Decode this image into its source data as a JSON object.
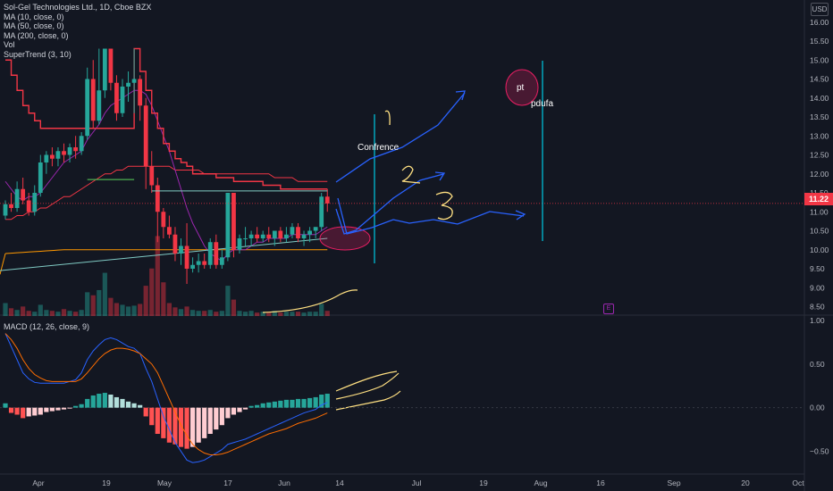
{
  "legend": {
    "title": "Sol-Gel Technologies Ltd., 1D, Cboe BZX",
    "ma10": "MA (10, close, 0)",
    "ma50": "MA (50, close, 0)",
    "ma200": "MA (200, close, 0)",
    "vol": "Vol",
    "supertrend": "SuperTrend (3, 10)"
  },
  "macd_label": "MACD (12, 26, close, 9)",
  "currency": "USD",
  "last_price": "11.22",
  "earnings_badge": "E",
  "colors": {
    "up": "#26a69a",
    "down": "#f23645",
    "ma10": "#9c27b0",
    "ma50": "#f23645",
    "ma200": "#ff9800",
    "supertrend_red": "#f23645",
    "supertrend_green": "#4caf50",
    "annotation": "#2962ff",
    "macd": "#2962ff",
    "signal": "#ff6d00",
    "background": "#131722"
  },
  "chart_data": {
    "type": "candlestick",
    "price_axis": [
      "16.00",
      "15.50",
      "15.00",
      "14.50",
      "14.00",
      "13.50",
      "13.00",
      "12.50",
      "12.00",
      "11.50",
      "11.00",
      "10.50",
      "10.00",
      "9.50",
      "9.00",
      "8.50"
    ],
    "price_ylim": [
      8.3,
      16.3
    ],
    "macd_axis": [
      "1.00",
      "0.50",
      "0.00",
      "−0.50"
    ],
    "macd_ylim": [
      -0.75,
      1.05
    ],
    "x_labels": [
      "Apr",
      "19",
      "May",
      "17",
      "Jun",
      "14",
      "Jul",
      "19",
      "Aug",
      "16",
      "Sep",
      "20",
      "Oct"
    ],
    "candles": [
      [
        10.9,
        11.3,
        10.8,
        11.2
      ],
      [
        11.2,
        11.5,
        11.0,
        11.1
      ],
      [
        11.1,
        11.8,
        11.0,
        11.6
      ],
      [
        11.6,
        11.9,
        11.2,
        11.3
      ],
      [
        11.3,
        11.5,
        10.9,
        11.0
      ],
      [
        11.0,
        11.7,
        10.9,
        11.5
      ],
      [
        11.5,
        12.5,
        11.4,
        12.3
      ],
      [
        12.3,
        12.6,
        12.0,
        12.5
      ],
      [
        12.5,
        12.7,
        12.2,
        12.4
      ],
      [
        12.4,
        12.7,
        12.2,
        12.6
      ],
      [
        12.6,
        12.8,
        12.3,
        12.5
      ],
      [
        12.5,
        12.8,
        12.3,
        12.7
      ],
      [
        12.7,
        13.0,
        12.4,
        12.6
      ],
      [
        12.6,
        13.1,
        12.5,
        13.0
      ],
      [
        13.0,
        14.8,
        12.9,
        14.5
      ],
      [
        14.5,
        15.0,
        13.2,
        13.4
      ],
      [
        13.4,
        15.3,
        13.3,
        14.2
      ],
      [
        14.2,
        15.3,
        14.0,
        15.3
      ],
      [
        15.3,
        15.3,
        14.2,
        14.4
      ],
      [
        14.4,
        14.6,
        13.4,
        13.6
      ],
      [
        13.6,
        14.5,
        13.5,
        14.3
      ],
      [
        14.3,
        14.7,
        13.9,
        14.4
      ],
      [
        14.4,
        15.3,
        13.6,
        14.5
      ],
      [
        14.5,
        14.6,
        13.4,
        13.8
      ],
      [
        13.8,
        14.0,
        11.6,
        12.2
      ],
      [
        12.2,
        12.6,
        11.5,
        11.7
      ],
      [
        11.7,
        11.9,
        10.2,
        11.0
      ],
      [
        11.0,
        11.1,
        10.3,
        10.6
      ],
      [
        10.6,
        10.9,
        10.3,
        10.4
      ],
      [
        10.4,
        10.6,
        9.7,
        9.9
      ],
      [
        9.9,
        10.3,
        9.6,
        10.1
      ],
      [
        10.1,
        10.7,
        9.1,
        9.5
      ],
      [
        9.5,
        9.8,
        9.4,
        9.6
      ],
      [
        9.6,
        9.9,
        9.4,
        9.7
      ],
      [
        9.7,
        9.9,
        9.5,
        9.6
      ],
      [
        9.6,
        10.3,
        9.5,
        10.2
      ],
      [
        10.2,
        10.4,
        9.5,
        9.6
      ],
      [
        9.6,
        10.0,
        9.5,
        9.8
      ],
      [
        9.8,
        11.5,
        9.7,
        11.5
      ],
      [
        11.5,
        11.5,
        9.8,
        10.0
      ],
      [
        10.0,
        10.4,
        9.9,
        10.3
      ],
      [
        10.3,
        10.6,
        10.1,
        10.3
      ],
      [
        10.3,
        10.5,
        10.1,
        10.4
      ],
      [
        10.4,
        10.6,
        10.2,
        10.3
      ],
      [
        10.3,
        10.5,
        10.2,
        10.4
      ],
      [
        10.4,
        10.6,
        10.2,
        10.3
      ],
      [
        10.3,
        10.5,
        10.1,
        10.5
      ],
      [
        10.5,
        10.6,
        10.2,
        10.3
      ],
      [
        10.3,
        10.6,
        10.2,
        10.4
      ],
      [
        10.4,
        10.7,
        10.3,
        10.6
      ],
      [
        10.6,
        10.7,
        10.2,
        10.3
      ],
      [
        10.3,
        10.5,
        10.1,
        10.4
      ],
      [
        10.4,
        10.6,
        10.2,
        10.5
      ],
      [
        10.5,
        10.6,
        10.3,
        10.6
      ],
      [
        10.6,
        11.5,
        10.5,
        11.4
      ],
      [
        11.4,
        11.6,
        11.0,
        11.22
      ]
    ],
    "volume": [
      30,
      18,
      14,
      22,
      12,
      10,
      26,
      14,
      12,
      10,
      16,
      12,
      10,
      14,
      55,
      48,
      60,
      100,
      42,
      30,
      26,
      22,
      24,
      28,
      70,
      110,
      185,
      78,
      30,
      20,
      16,
      22,
      14,
      12,
      12,
      14,
      10,
      12,
      70,
      38,
      12,
      10,
      12,
      8,
      10,
      8,
      12,
      8,
      10,
      10,
      10,
      8,
      10,
      10,
      28,
      12
    ],
    "ma10": [
      11.8,
      11.6,
      11.4,
      11.3,
      11.4,
      11.4,
      11.5,
      11.7,
      11.9,
      12.1,
      12.3,
      12.4,
      12.5,
      12.6,
      12.9,
      13.1,
      13.3,
      13.6,
      13.8,
      13.9,
      14.0,
      14.1,
      14.2,
      14.2,
      14.1,
      13.8,
      13.4,
      13.0,
      12.6,
      12.1,
      11.6,
      11.1,
      10.7,
      10.4,
      10.1,
      9.9,
      9.8,
      9.7,
      9.9,
      10.0,
      10.0,
      10.0,
      10.1,
      10.2,
      10.2,
      10.3,
      10.3,
      10.3,
      10.3,
      10.4,
      10.4,
      10.4,
      10.4,
      10.4,
      10.5,
      10.6
    ],
    "ma50": [
      10.8,
      10.8,
      10.9,
      10.9,
      11.0,
      11.0,
      11.1,
      11.1,
      11.2,
      11.3,
      11.4,
      11.4,
      11.5,
      11.6,
      11.7,
      11.8,
      11.9,
      12.0,
      12.0,
      12.1,
      12.1,
      12.2,
      12.2,
      12.2,
      12.2,
      12.2,
      12.2,
      12.2,
      12.2,
      12.1,
      12.1,
      12.1,
      12.1,
      12.1,
      12.0,
      12.0,
      12.0,
      12.0,
      12.0,
      12.0,
      12.0,
      12.0,
      12.0,
      12.0,
      12.0,
      12.0,
      11.9,
      11.9,
      11.9,
      11.9,
      11.8,
      11.8,
      11.8,
      11.8,
      11.8,
      11.8
    ],
    "ma200": [
      9.9,
      9.91,
      9.92,
      9.93,
      9.94,
      9.95,
      9.96,
      9.97,
      9.98,
      9.99,
      10.0,
      10.0,
      10.0,
      10.0,
      10.0,
      10.0,
      10.0,
      10.0,
      10.0,
      10.0,
      10.0,
      10.0,
      10.0,
      10.0,
      10.0,
      10.0,
      10.0,
      10.0,
      10.0,
      10.0,
      10.0,
      10.0,
      10.0,
      10.0,
      10.0,
      10.0,
      10.0,
      10.0,
      10.0,
      10.0,
      10.0,
      10.0,
      10.0,
      10.0,
      10.0,
      10.0,
      10.0,
      10.0,
      10.0,
      10.0,
      10.0,
      10.0,
      10.0,
      10.0,
      10.0,
      10.0
    ],
    "supertrend": [
      15.0,
      14.6,
      14.2,
      13.8,
      13.6,
      13.4,
      13.2,
      13.2,
      13.2,
      13.2,
      13.2,
      13.2,
      13.2,
      13.2,
      13.2,
      13.2,
      13.2,
      13.2,
      13.2,
      13.2,
      13.2,
      13.2,
      15.3,
      14.7,
      14.2,
      13.6,
      13.2,
      12.8,
      12.6,
      12.4,
      12.3,
      12.2,
      12.0,
      12.0,
      12.0,
      12.0,
      11.9,
      11.9,
      11.9,
      11.8,
      11.8,
      11.8,
      11.8,
      11.8,
      11.7,
      11.7,
      11.7,
      11.6,
      11.6,
      11.6,
      11.6,
      11.6,
      11.6,
      11.6,
      11.6,
      11.6
    ],
    "macd_hist": [
      0.05,
      -0.06,
      -0.08,
      -0.12,
      -0.1,
      -0.09,
      -0.08,
      -0.05,
      -0.04,
      -0.03,
      -0.02,
      -0.01,
      0.02,
      0.04,
      0.1,
      0.14,
      0.16,
      0.17,
      0.15,
      0.12,
      0.1,
      0.07,
      0.05,
      0.03,
      -0.1,
      -0.2,
      -0.3,
      -0.35,
      -0.4,
      -0.42,
      -0.45,
      -0.47,
      -0.45,
      -0.4,
      -0.35,
      -0.3,
      -0.25,
      -0.2,
      -0.12,
      -0.08,
      -0.05,
      -0.02,
      0.02,
      0.03,
      0.05,
      0.06,
      0.07,
      0.08,
      0.09,
      0.09,
      0.1,
      0.1,
      0.11,
      0.12,
      0.15,
      0.16
    ],
    "macd_line": [
      0.85,
      0.7,
      0.55,
      0.4,
      0.33,
      0.29,
      0.28,
      0.28,
      0.28,
      0.28,
      0.28,
      0.3,
      0.32,
      0.4,
      0.55,
      0.65,
      0.72,
      0.78,
      0.8,
      0.78,
      0.74,
      0.7,
      0.68,
      0.62,
      0.45,
      0.3,
      0.1,
      -0.1,
      -0.25,
      -0.4,
      -0.5,
      -0.6,
      -0.63,
      -0.62,
      -0.6,
      -0.56,
      -0.52,
      -0.48,
      -0.42,
      -0.4,
      -0.38,
      -0.36,
      -0.33,
      -0.3,
      -0.27,
      -0.24,
      -0.21,
      -0.18,
      -0.15,
      -0.12,
      -0.09,
      -0.06,
      -0.04,
      -0.02,
      0.03,
      0.06
    ],
    "signal_line": [
      0.85,
      0.78,
      0.68,
      0.55,
      0.45,
      0.38,
      0.34,
      0.31,
      0.3,
      0.3,
      0.3,
      0.3,
      0.3,
      0.33,
      0.4,
      0.48,
      0.56,
      0.62,
      0.66,
      0.68,
      0.68,
      0.67,
      0.65,
      0.62,
      0.56,
      0.5,
      0.4,
      0.25,
      0.1,
      -0.05,
      -0.2,
      -0.32,
      -0.42,
      -0.48,
      -0.52,
      -0.54,
      -0.54,
      -0.53,
      -0.51,
      -0.48,
      -0.45,
      -0.42,
      -0.39,
      -0.36,
      -0.33,
      -0.3,
      -0.28,
      -0.26,
      -0.24,
      -0.21,
      -0.18,
      -0.16,
      -0.14,
      -0.12,
      -0.09,
      -0.06
    ],
    "annotations": {
      "conference": "Confrence",
      "pt": "pt",
      "pdufa": "pdufa",
      "scenario1": "1",
      "scenario2": "2",
      "scenario3": "3"
    }
  }
}
